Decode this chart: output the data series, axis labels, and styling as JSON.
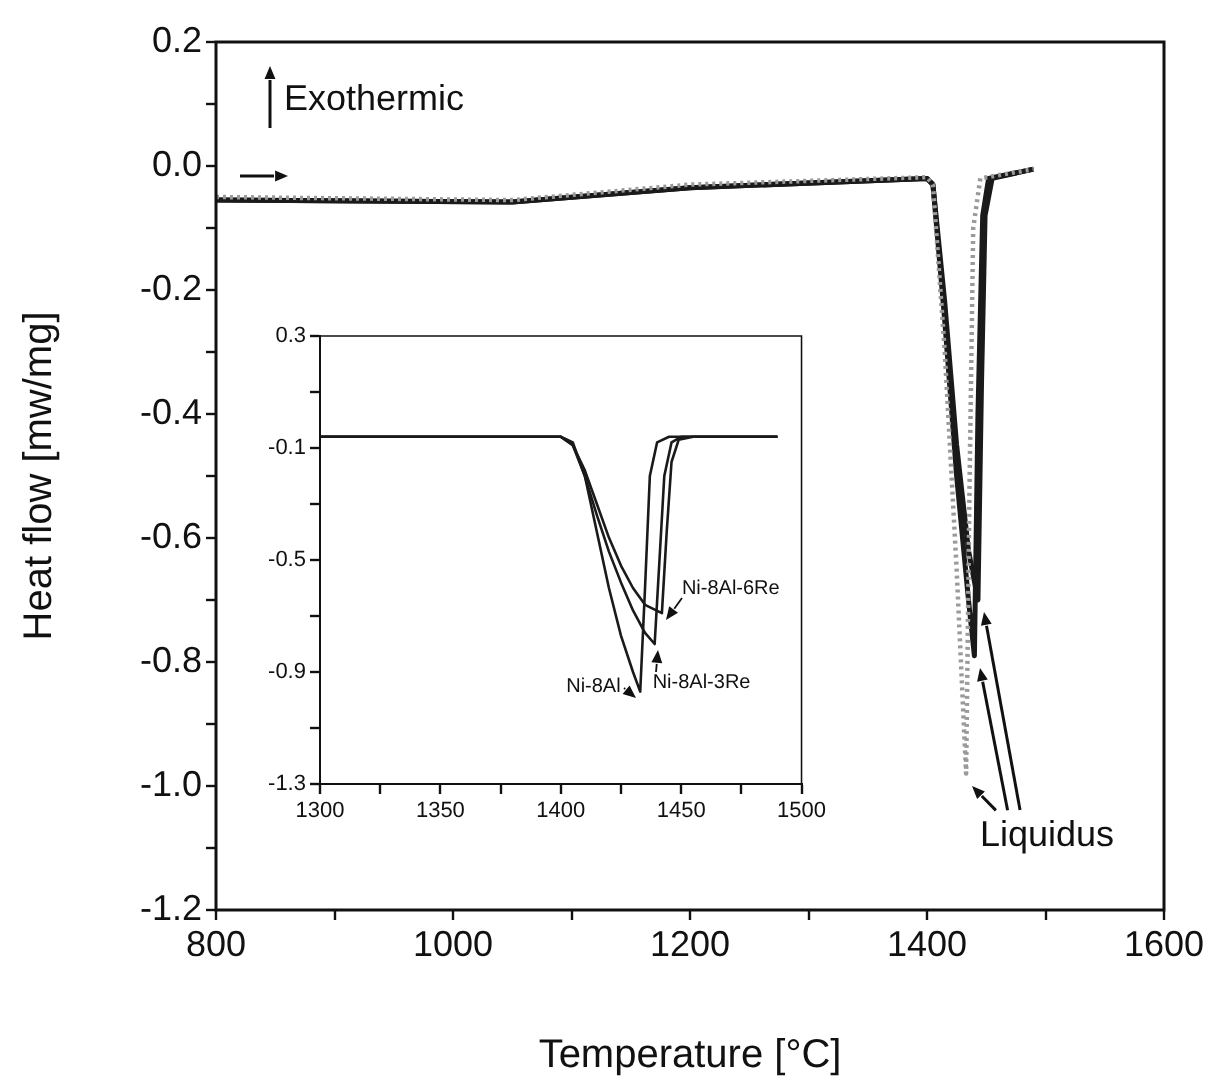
{
  "chart_data": [
    {
      "type": "line",
      "xlabel": "Temperature [°C]",
      "ylabel": "Heat flow [mw/mg]",
      "xlim": [
        800,
        1600
      ],
      "ylim": [
        -1.2,
        0.2
      ],
      "xticks": [
        800,
        {
          "value": 900,
          "label": null
        },
        1000,
        {
          "value": 1100,
          "label": null
        },
        1200,
        {
          "value": 1300,
          "label": null
        },
        1400,
        {
          "value": 1500,
          "label": null
        },
        1600
      ],
      "yticks": [
        -1.2,
        {
          "value": -1.1,
          "label": null
        },
        {
          "value": -1,
          "label": "-1.0"
        },
        {
          "value": -0.9,
          "label": null
        },
        -0.8,
        {
          "value": -0.7,
          "label": null
        },
        -0.6,
        {
          "value": -0.5,
          "label": null
        },
        -0.4,
        {
          "value": -0.3,
          "label": null
        },
        -0.2,
        {
          "value": -0.1,
          "label": null
        },
        {
          "value": 0,
          "label": "0.0"
        },
        {
          "value": 0.1,
          "label": null
        },
        0.2
      ],
      "annotations": [
        "Exothermic",
        "Liquidus"
      ],
      "series": [
        {
          "color": "#9a9a9a",
          "line_style": "dotted",
          "x": [
            800,
            1050,
            1200,
            1400,
            1405,
            1415,
            1425,
            1433,
            1436,
            1439,
            1445,
            1490
          ],
          "values": [
            -0.05,
            -0.055,
            -0.03,
            -0.018,
            -0.03,
            -0.3,
            -0.65,
            -0.98,
            -0.5,
            -0.1,
            -0.02,
            -0.005
          ]
        },
        {
          "color": "#1a1a1a",
          "line_style": "solid",
          "x": [
            800,
            1050,
            1200,
            1400,
            1405,
            1415,
            1425,
            1435,
            1440,
            1443,
            1447,
            1452,
            1490
          ],
          "values": [
            -0.055,
            -0.058,
            -0.035,
            -0.02,
            -0.03,
            -0.25,
            -0.5,
            -0.7,
            -0.79,
            -0.4,
            -0.08,
            -0.02,
            -0.005
          ]
        },
        {
          "color": "#1a1a1a",
          "line_style": "solid",
          "x": [
            800,
            1050,
            1200,
            1400,
            1405,
            1415,
            1425,
            1435,
            1443,
            1446,
            1449,
            1455,
            1490
          ],
          "values": [
            -0.055,
            -0.058,
            -0.035,
            -0.02,
            -0.03,
            -0.22,
            -0.45,
            -0.62,
            -0.7,
            -0.35,
            -0.08,
            -0.02,
            -0.005
          ]
        }
      ]
    },
    {
      "type": "line",
      "xlim": [
        1300,
        1500
      ],
      "ylim": [
        -1.3,
        0.3
      ],
      "xticks": [
        1300,
        {
          "value": 1325,
          "label": null
        },
        1350,
        {
          "value": 1375,
          "label": null
        },
        1400,
        {
          "value": 1425,
          "label": null
        },
        1450,
        {
          "value": 1475,
          "label": null
        },
        1500
      ],
      "yticks": [
        -1.3,
        {
          "value": -1.1,
          "label": null
        },
        -0.9,
        {
          "value": -0.7,
          "label": null
        },
        -0.5,
        {
          "value": -0.3,
          "label": null
        },
        -0.1,
        {
          "value": 0.1,
          "label": null
        },
        0.3
      ],
      "series": [
        {
          "name": "Ni-8Al",
          "color": "#1a1a1a",
          "x": [
            1300,
            1400,
            1405,
            1410,
            1415,
            1420,
            1425,
            1430,
            1433,
            1435,
            1437,
            1440,
            1445,
            1490
          ],
          "values": [
            -0.06,
            -0.06,
            -0.08,
            -0.2,
            -0.4,
            -0.6,
            -0.77,
            -0.9,
            -0.97,
            -0.6,
            -0.2,
            -0.08,
            -0.06,
            -0.06
          ]
        },
        {
          "name": "Ni-8Al-3Re",
          "color": "#1a1a1a",
          "x": [
            1300,
            1400,
            1405,
            1410,
            1415,
            1420,
            1425,
            1430,
            1435,
            1439,
            1441,
            1443,
            1446,
            1450,
            1490
          ],
          "values": [
            -0.06,
            -0.06,
            -0.09,
            -0.2,
            -0.34,
            -0.47,
            -0.58,
            -0.68,
            -0.76,
            -0.8,
            -0.5,
            -0.2,
            -0.08,
            -0.06,
            -0.06
          ]
        },
        {
          "name": "Ni-8Al-6Re",
          "color": "#1a1a1a",
          "x": [
            1300,
            1400,
            1405,
            1410,
            1415,
            1420,
            1425,
            1430,
            1435,
            1442,
            1444,
            1446,
            1449,
            1455,
            1490
          ],
          "values": [
            -0.06,
            -0.06,
            -0.09,
            -0.18,
            -0.3,
            -0.42,
            -0.52,
            -0.6,
            -0.66,
            -0.69,
            -0.4,
            -0.15,
            -0.07,
            -0.06,
            -0.06
          ]
        }
      ]
    }
  ]
}
